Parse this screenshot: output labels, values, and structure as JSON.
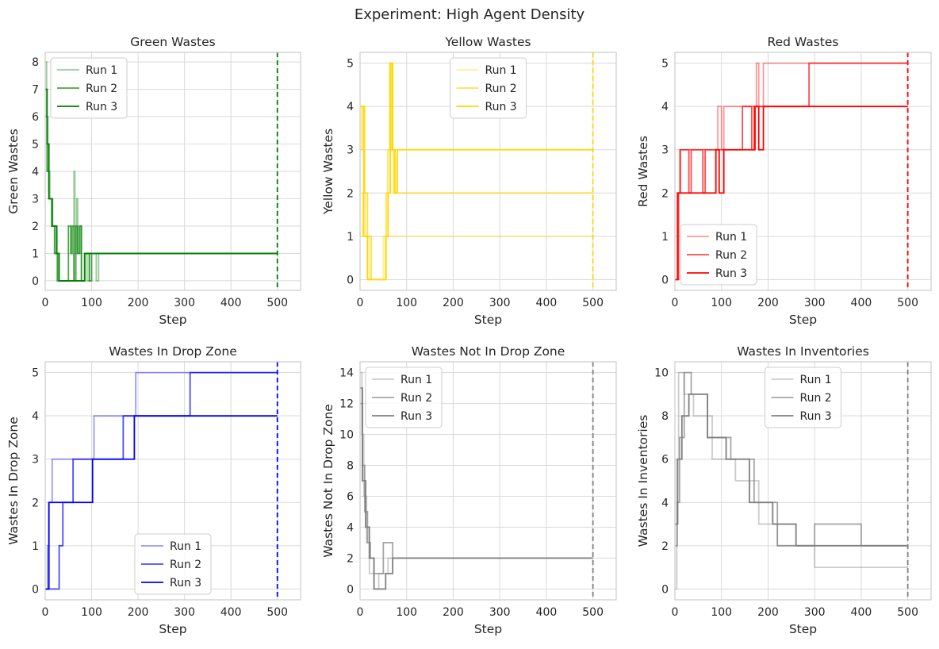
{
  "figure": {
    "title": "Experiment: High Agent Density",
    "total_steps": 500
  },
  "chart_data": [
    {
      "type": "line",
      "title": "Green Wastes",
      "xlabel": "Step",
      "ylabel": "Green Wastes",
      "xlim": [
        0,
        550
      ],
      "ylim": [
        -0.35,
        8.35
      ],
      "xticks": [
        0,
        100,
        200,
        300,
        400,
        500
      ],
      "yticks": [
        0,
        1,
        2,
        3,
        4,
        5,
        6,
        7,
        8
      ],
      "grid": true,
      "legend_position": "upper-left",
      "color": "#008000",
      "vline": {
        "x": 500,
        "style": "dashed"
      },
      "series": [
        {
          "name": "Run 1",
          "alpha": 0.4,
          "points": [
            [
              0,
              8
            ],
            [
              3,
              6
            ],
            [
              6,
              4
            ],
            [
              10,
              3
            ],
            [
              16,
              2
            ],
            [
              22,
              1
            ],
            [
              28,
              0
            ],
            [
              60,
              0
            ],
            [
              62,
              4
            ],
            [
              64,
              2
            ],
            [
              66,
              1
            ],
            [
              68,
              3
            ],
            [
              70,
              1
            ],
            [
              75,
              2
            ],
            [
              78,
              0
            ],
            [
              85,
              1
            ],
            [
              90,
              0
            ],
            [
              95,
              1
            ],
            [
              110,
              0
            ],
            [
              115,
              1
            ],
            [
              500,
              1
            ]
          ]
        },
        {
          "name": "Run 2",
          "alpha": 0.7,
          "points": [
            [
              0,
              6
            ],
            [
              4,
              4
            ],
            [
              8,
              3
            ],
            [
              14,
              2
            ],
            [
              20,
              1
            ],
            [
              26,
              0
            ],
            [
              45,
              0
            ],
            [
              50,
              2
            ],
            [
              55,
              1
            ],
            [
              58,
              2
            ],
            [
              62,
              0
            ],
            [
              66,
              2
            ],
            [
              70,
              1
            ],
            [
              74,
              2
            ],
            [
              78,
              0
            ],
            [
              85,
              1
            ],
            [
              95,
              0
            ],
            [
              100,
              1
            ],
            [
              500,
              1
            ]
          ]
        },
        {
          "name": "Run 3",
          "alpha": 1.0,
          "points": [
            [
              0,
              7
            ],
            [
              4,
              5
            ],
            [
              8,
              3
            ],
            [
              15,
              2
            ],
            [
              25,
              1
            ],
            [
              30,
              0
            ],
            [
              80,
              0
            ],
            [
              85,
              1
            ],
            [
              500,
              1
            ]
          ]
        }
      ]
    },
    {
      "type": "line",
      "title": "Yellow Wastes",
      "xlabel": "Step",
      "ylabel": "Yellow Wastes",
      "xlim": [
        0,
        550
      ],
      "ylim": [
        -0.25,
        5.25
      ],
      "xticks": [
        0,
        100,
        200,
        300,
        400,
        500
      ],
      "yticks": [
        0,
        1,
        2,
        3,
        4,
        5
      ],
      "grid": true,
      "legend_position": "upper-center",
      "color": "#FFD700",
      "vline": {
        "x": 500,
        "style": "dashed"
      },
      "series": [
        {
          "name": "Run 1",
          "alpha": 0.4,
          "points": [
            [
              0,
              1
            ],
            [
              5,
              2
            ],
            [
              12,
              1
            ],
            [
              20,
              0
            ],
            [
              45,
              0
            ],
            [
              50,
              1
            ],
            [
              500,
              1
            ]
          ]
        },
        {
          "name": "Run 2",
          "alpha": 0.7,
          "points": [
            [
              0,
              3
            ],
            [
              4,
              4
            ],
            [
              10,
              2
            ],
            [
              16,
              1
            ],
            [
              24,
              0
            ],
            [
              52,
              0
            ],
            [
              56,
              2
            ],
            [
              60,
              3
            ],
            [
              64,
              5
            ],
            [
              68,
              3
            ],
            [
              72,
              2
            ],
            [
              500,
              2
            ]
          ]
        },
        {
          "name": "Run 3",
          "alpha": 1.0,
          "points": [
            [
              0,
              4
            ],
            [
              8,
              1
            ],
            [
              16,
              0
            ],
            [
              50,
              0
            ],
            [
              55,
              1
            ],
            [
              60,
              2
            ],
            [
              65,
              5
            ],
            [
              70,
              3
            ],
            [
              75,
              2
            ],
            [
              80,
              3
            ],
            [
              500,
              3
            ]
          ]
        }
      ]
    },
    {
      "type": "line",
      "title": "Red Wastes",
      "xlabel": "Step",
      "ylabel": "Red Wastes",
      "xlim": [
        0,
        550
      ],
      "ylim": [
        -0.25,
        5.25
      ],
      "xticks": [
        0,
        100,
        200,
        300,
        400,
        500
      ],
      "yticks": [
        0,
        1,
        2,
        3,
        4,
        5
      ],
      "grid": true,
      "legend_position": "lower-left",
      "color": "#FF0000",
      "vline": {
        "x": 500,
        "style": "dashed"
      },
      "series": [
        {
          "name": "Run 1",
          "alpha": 0.4,
          "points": [
            [
              0,
              0
            ],
            [
              5,
              2
            ],
            [
              10,
              3
            ],
            [
              90,
              3
            ],
            [
              92,
              4
            ],
            [
              100,
              3
            ],
            [
              105,
              4
            ],
            [
              170,
              4
            ],
            [
              175,
              5
            ],
            [
              180,
              4
            ],
            [
              190,
              5
            ],
            [
              500,
              5
            ]
          ]
        },
        {
          "name": "Run 2",
          "alpha": 0.7,
          "points": [
            [
              0,
              0
            ],
            [
              8,
              2
            ],
            [
              12,
              3
            ],
            [
              30,
              2
            ],
            [
              35,
              3
            ],
            [
              60,
              2
            ],
            [
              65,
              3
            ],
            [
              140,
              3
            ],
            [
              145,
              4
            ],
            [
              165,
              3
            ],
            [
              170,
              4
            ],
            [
              285,
              4
            ],
            [
              288,
              5
            ],
            [
              500,
              5
            ]
          ]
        },
        {
          "name": "Run 3",
          "alpha": 1.0,
          "points": [
            [
              0,
              0
            ],
            [
              6,
              2
            ],
            [
              85,
              2
            ],
            [
              88,
              3
            ],
            [
              95,
              2
            ],
            [
              105,
              3
            ],
            [
              170,
              3
            ],
            [
              172,
              4
            ],
            [
              180,
              3
            ],
            [
              190,
              4
            ],
            [
              500,
              4
            ]
          ]
        }
      ]
    },
    {
      "type": "line",
      "title": "Wastes In Drop Zone",
      "xlabel": "Step",
      "ylabel": "Wastes In Drop Zone",
      "xlim": [
        0,
        550
      ],
      "ylim": [
        -0.25,
        5.25
      ],
      "xticks": [
        0,
        100,
        200,
        300,
        400,
        500
      ],
      "yticks": [
        0,
        1,
        2,
        3,
        4,
        5
      ],
      "grid": true,
      "legend_position": "lower-center",
      "color": "#0000FF",
      "vline": {
        "x": 500,
        "style": "dashed"
      },
      "series": [
        {
          "name": "Run 1",
          "alpha": 0.4,
          "points": [
            [
              0,
              0
            ],
            [
              5,
              1
            ],
            [
              8,
              2
            ],
            [
              15,
              3
            ],
            [
              100,
              3
            ],
            [
              105,
              4
            ],
            [
              190,
              4
            ],
            [
              195,
              5
            ],
            [
              500,
              5
            ]
          ]
        },
        {
          "name": "Run 2",
          "alpha": 0.7,
          "points": [
            [
              0,
              0
            ],
            [
              30,
              1
            ],
            [
              38,
              2
            ],
            [
              60,
              3
            ],
            [
              165,
              3
            ],
            [
              168,
              4
            ],
            [
              310,
              4
            ],
            [
              312,
              5
            ],
            [
              500,
              5
            ]
          ]
        },
        {
          "name": "Run 3",
          "alpha": 1.0,
          "points": [
            [
              0,
              0
            ],
            [
              8,
              2
            ],
            [
              100,
              2
            ],
            [
              102,
              3
            ],
            [
              190,
              3
            ],
            [
              192,
              4
            ],
            [
              500,
              4
            ]
          ]
        }
      ]
    },
    {
      "type": "line",
      "title": "Wastes Not In Drop Zone",
      "xlabel": "Step",
      "ylabel": "Wastes Not In Drop Zone",
      "xlim": [
        0,
        550
      ],
      "ylim": [
        -0.7,
        14.7
      ],
      "xticks": [
        0,
        100,
        200,
        300,
        400,
        500
      ],
      "yticks": [
        0,
        2,
        4,
        6,
        8,
        10,
        12,
        14
      ],
      "grid": true,
      "legend_position": "upper-left",
      "color": "#808080",
      "vline": {
        "x": 500,
        "style": "dashed"
      },
      "series": [
        {
          "name": "Run 1",
          "alpha": 0.4,
          "points": [
            [
              0,
              14
            ],
            [
              4,
              10
            ],
            [
              8,
              6
            ],
            [
              14,
              3
            ],
            [
              20,
              1
            ],
            [
              30,
              0
            ],
            [
              40,
              1
            ],
            [
              60,
              2
            ],
            [
              500,
              2
            ]
          ]
        },
        {
          "name": "Run 2",
          "alpha": 0.7,
          "points": [
            [
              0,
              12
            ],
            [
              5,
              8
            ],
            [
              10,
              5
            ],
            [
              16,
              3
            ],
            [
              22,
              2
            ],
            [
              30,
              1
            ],
            [
              50,
              3
            ],
            [
              70,
              2
            ],
            [
              500,
              2
            ]
          ]
        },
        {
          "name": "Run 3",
          "alpha": 1.0,
          "points": [
            [
              0,
              13
            ],
            [
              5,
              7
            ],
            [
              12,
              4
            ],
            [
              20,
              2
            ],
            [
              30,
              0
            ],
            [
              55,
              1
            ],
            [
              70,
              2
            ],
            [
              500,
              2
            ]
          ]
        }
      ]
    },
    {
      "type": "line",
      "title": "Wastes In Inventories",
      "xlabel": "Step",
      "ylabel": "Wastes In Inventories",
      "xlim": [
        0,
        550
      ],
      "ylim": [
        -0.5,
        10.5
      ],
      "xticks": [
        0,
        100,
        200,
        300,
        400,
        500
      ],
      "yticks": [
        0,
        2,
        4,
        6,
        8,
        10
      ],
      "grid": true,
      "legend_position": "upper-center",
      "color": "#808080",
      "vline": {
        "x": 500,
        "style": "dashed"
      },
      "series": [
        {
          "name": "Run 1",
          "alpha": 0.4,
          "points": [
            [
              0,
              0
            ],
            [
              4,
              6
            ],
            [
              8,
              10
            ],
            [
              20,
              9
            ],
            [
              40,
              8
            ],
            [
              80,
              6
            ],
            [
              130,
              5
            ],
            [
              180,
              3
            ],
            [
              220,
              2
            ],
            [
              300,
              1
            ],
            [
              500,
              1
            ]
          ]
        },
        {
          "name": "Run 2",
          "alpha": 0.7,
          "points": [
            [
              0,
              2
            ],
            [
              5,
              4
            ],
            [
              10,
              7
            ],
            [
              20,
              10
            ],
            [
              35,
              9
            ],
            [
              70,
              7
            ],
            [
              120,
              6
            ],
            [
              170,
              4
            ],
            [
              220,
              2
            ],
            [
              300,
              3
            ],
            [
              400,
              2
            ],
            [
              500,
              2
            ]
          ]
        },
        {
          "name": "Run 3",
          "alpha": 1.0,
          "points": [
            [
              0,
              3
            ],
            [
              6,
              6
            ],
            [
              15,
              8
            ],
            [
              30,
              9
            ],
            [
              70,
              7
            ],
            [
              110,
              6
            ],
            [
              160,
              4
            ],
            [
              210,
              3
            ],
            [
              260,
              2
            ],
            [
              500,
              2
            ]
          ]
        }
      ]
    }
  ]
}
